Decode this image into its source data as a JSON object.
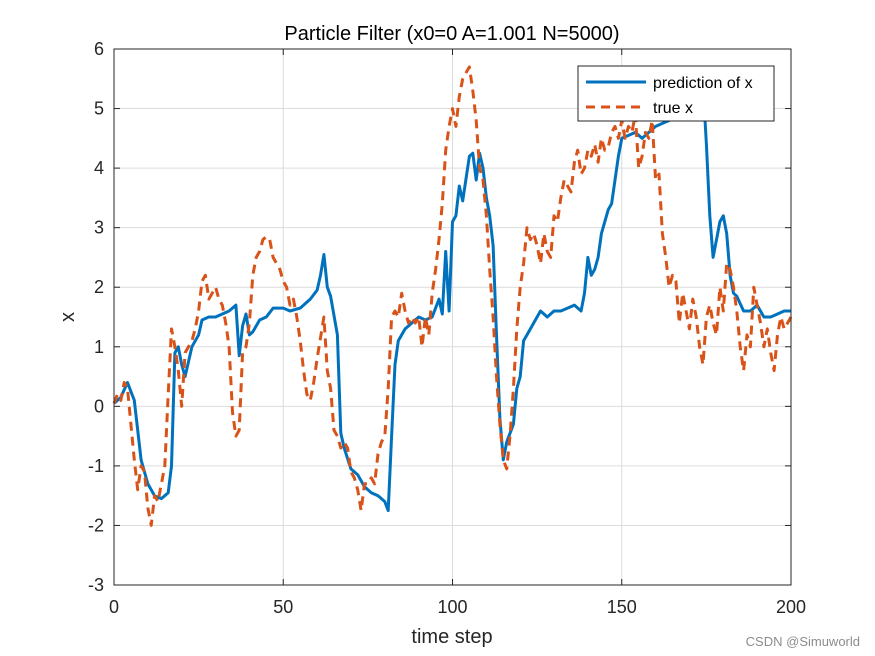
{
  "chart_data": {
    "type": "line",
    "title": "Particle Filter (x0=0 A=1.001 N=5000)",
    "xlabel": "time step",
    "ylabel": "x",
    "xlim": [
      0,
      200
    ],
    "ylim": [
      -3,
      6
    ],
    "xticks": [
      0,
      50,
      100,
      150,
      200
    ],
    "yticks": [
      -3,
      -2,
      -1,
      0,
      1,
      2,
      3,
      4,
      5,
      6
    ],
    "grid": true,
    "legend_position": "top-right",
    "series": [
      {
        "name": "prediction of x",
        "color": "#0072BD",
        "style": "solid",
        "points": [
          [
            0,
            0.05
          ],
          [
            2,
            0.15
          ],
          [
            4,
            0.4
          ],
          [
            6,
            0.1
          ],
          [
            8,
            -0.9
          ],
          [
            10,
            -1.3
          ],
          [
            12,
            -1.5
          ],
          [
            14,
            -1.55
          ],
          [
            16,
            -1.45
          ],
          [
            17,
            -1.0
          ],
          [
            18,
            0.9
          ],
          [
            19,
            1.0
          ],
          [
            20,
            0.7
          ],
          [
            21,
            0.5
          ],
          [
            22,
            0.75
          ],
          [
            23,
            1.0
          ],
          [
            25,
            1.2
          ],
          [
            26,
            1.45
          ],
          [
            28,
            1.5
          ],
          [
            30,
            1.5
          ],
          [
            32,
            1.55
          ],
          [
            34,
            1.6
          ],
          [
            36,
            1.7
          ],
          [
            37,
            0.85
          ],
          [
            38,
            1.35
          ],
          [
            39,
            1.55
          ],
          [
            40,
            1.2
          ],
          [
            41,
            1.25
          ],
          [
            43,
            1.45
          ],
          [
            45,
            1.5
          ],
          [
            47,
            1.65
          ],
          [
            50,
            1.65
          ],
          [
            52,
            1.6
          ],
          [
            55,
            1.65
          ],
          [
            58,
            1.8
          ],
          [
            60,
            1.95
          ],
          [
            61,
            2.2
          ],
          [
            62,
            2.55
          ],
          [
            63,
            2.0
          ],
          [
            64,
            1.85
          ],
          [
            66,
            1.2
          ],
          [
            67,
            -0.45
          ],
          [
            68,
            -0.7
          ],
          [
            70,
            -1.05
          ],
          [
            72,
            -1.15
          ],
          [
            74,
            -1.35
          ],
          [
            76,
            -1.45
          ],
          [
            78,
            -1.5
          ],
          [
            80,
            -1.6
          ],
          [
            81,
            -1.75
          ],
          [
            82,
            -0.5
          ],
          [
            83,
            0.7
          ],
          [
            84,
            1.1
          ],
          [
            86,
            1.3
          ],
          [
            88,
            1.4
          ],
          [
            90,
            1.5
          ],
          [
            92,
            1.45
          ],
          [
            94,
            1.5
          ],
          [
            96,
            1.8
          ],
          [
            97,
            1.55
          ],
          [
            98,
            2.6
          ],
          [
            99,
            1.6
          ],
          [
            100,
            3.1
          ],
          [
            101,
            3.2
          ],
          [
            102,
            3.7
          ],
          [
            103,
            3.45
          ],
          [
            105,
            4.2
          ],
          [
            106,
            4.25
          ],
          [
            107,
            3.8
          ],
          [
            108,
            4.25
          ],
          [
            109,
            4.0
          ],
          [
            110,
            3.5
          ],
          [
            111,
            3.2
          ],
          [
            112,
            2.7
          ],
          [
            113,
            1.2
          ],
          [
            114,
            -0.2
          ],
          [
            115,
            -0.9
          ],
          [
            116,
            -0.6
          ],
          [
            118,
            -0.3
          ],
          [
            119,
            0.3
          ],
          [
            120,
            0.5
          ],
          [
            121,
            1.1
          ],
          [
            122,
            1.2
          ],
          [
            124,
            1.4
          ],
          [
            126,
            1.6
          ],
          [
            128,
            1.5
          ],
          [
            130,
            1.6
          ],
          [
            132,
            1.6
          ],
          [
            134,
            1.65
          ],
          [
            136,
            1.7
          ],
          [
            138,
            1.6
          ],
          [
            139,
            1.9
          ],
          [
            140,
            2.5
          ],
          [
            141,
            2.2
          ],
          [
            142,
            2.3
          ],
          [
            143,
            2.5
          ],
          [
            144,
            2.9
          ],
          [
            146,
            3.3
          ],
          [
            147,
            3.4
          ],
          [
            148,
            3.8
          ],
          [
            149,
            4.2
          ],
          [
            150,
            4.5
          ],
          [
            152,
            4.55
          ],
          [
            154,
            4.6
          ],
          [
            156,
            4.5
          ],
          [
            158,
            4.6
          ],
          [
            160,
            4.7
          ],
          [
            162,
            4.75
          ],
          [
            164,
            4.8
          ],
          [
            166,
            4.95
          ],
          [
            168,
            5.05
          ],
          [
            170,
            5.2
          ],
          [
            172,
            5.3
          ],
          [
            174,
            5.4
          ],
          [
            175,
            4.4
          ],
          [
            176,
            3.2
          ],
          [
            177,
            2.5
          ],
          [
            178,
            2.8
          ],
          [
            179,
            3.1
          ],
          [
            180,
            3.2
          ],
          [
            181,
            2.9
          ],
          [
            182,
            2.2
          ],
          [
            183,
            1.9
          ],
          [
            184,
            1.85
          ],
          [
            186,
            1.6
          ],
          [
            188,
            1.6
          ],
          [
            190,
            1.7
          ],
          [
            192,
            1.5
          ],
          [
            194,
            1.5
          ],
          [
            196,
            1.55
          ],
          [
            198,
            1.6
          ],
          [
            200,
            1.6
          ]
        ]
      },
      {
        "name": "true x",
        "color": "#D95319",
        "style": "dashed",
        "points": [
          [
            0,
            0.05
          ],
          [
            1,
            0.2
          ],
          [
            2,
            0.1
          ],
          [
            3,
            0.4
          ],
          [
            4,
            0.3
          ],
          [
            5,
            -0.3
          ],
          [
            6,
            -0.9
          ],
          [
            7,
            -1.4
          ],
          [
            8,
            -1.0
          ],
          [
            9,
            -1.1
          ],
          [
            10,
            -1.7
          ],
          [
            11,
            -2.0
          ],
          [
            12,
            -1.5
          ],
          [
            13,
            -1.6
          ],
          [
            14,
            -1.3
          ],
          [
            15,
            -1.0
          ],
          [
            16,
            0.2
          ],
          [
            17,
            1.3
          ],
          [
            18,
            1.0
          ],
          [
            19,
            0.6
          ],
          [
            20,
            0.0
          ],
          [
            21,
            0.9
          ],
          [
            22,
            1.0
          ],
          [
            23,
            1.1
          ],
          [
            24,
            1.3
          ],
          [
            25,
            1.6
          ],
          [
            26,
            2.1
          ],
          [
            27,
            2.2
          ],
          [
            28,
            1.8
          ],
          [
            29,
            1.9
          ],
          [
            30,
            2.0
          ],
          [
            31,
            1.8
          ],
          [
            32,
            1.7
          ],
          [
            33,
            1.4
          ],
          [
            34,
            1.0
          ],
          [
            35,
            -0.1
          ],
          [
            36,
            -0.5
          ],
          [
            37,
            -0.4
          ],
          [
            38,
            0.9
          ],
          [
            39,
            1.0
          ],
          [
            40,
            1.4
          ],
          [
            41,
            2.2
          ],
          [
            42,
            2.5
          ],
          [
            43,
            2.6
          ],
          [
            44,
            2.8
          ],
          [
            45,
            2.85
          ],
          [
            46,
            2.8
          ],
          [
            47,
            2.5
          ],
          [
            48,
            2.4
          ],
          [
            49,
            2.3
          ],
          [
            50,
            2.1
          ],
          [
            51,
            2.0
          ],
          [
            52,
            1.7
          ],
          [
            53,
            1.8
          ],
          [
            54,
            1.5
          ],
          [
            55,
            1.1
          ],
          [
            56,
            0.6
          ],
          [
            57,
            0.2
          ],
          [
            58,
            0.1
          ],
          [
            59,
            0.4
          ],
          [
            60,
            0.8
          ],
          [
            62,
            1.5
          ],
          [
            63,
            0.6
          ],
          [
            64,
            0.3
          ],
          [
            65,
            -0.4
          ],
          [
            66,
            -0.5
          ],
          [
            67,
            -0.7
          ],
          [
            68,
            -0.6
          ],
          [
            69,
            -0.7
          ],
          [
            70,
            -1.1
          ],
          [
            71,
            -1.2
          ],
          [
            72,
            -1.4
          ],
          [
            73,
            -1.75
          ],
          [
            74,
            -1.3
          ],
          [
            75,
            -1.3
          ],
          [
            76,
            -1.2
          ],
          [
            77,
            -1.3
          ],
          [
            78,
            -0.8
          ],
          [
            79,
            -0.6
          ],
          [
            80,
            -0.5
          ],
          [
            81,
            0.3
          ],
          [
            82,
            1.5
          ],
          [
            83,
            1.6
          ],
          [
            84,
            1.5
          ],
          [
            85,
            1.9
          ],
          [
            86,
            1.6
          ],
          [
            87,
            1.4
          ],
          [
            88,
            1.5
          ],
          [
            89,
            1.4
          ],
          [
            90,
            1.5
          ],
          [
            91,
            1.0
          ],
          [
            92,
            1.5
          ],
          [
            93,
            1.2
          ],
          [
            94,
            1.9
          ],
          [
            95,
            2.3
          ],
          [
            96,
            2.8
          ],
          [
            97,
            3.4
          ],
          [
            98,
            4.3
          ],
          [
            99,
            4.7
          ],
          [
            100,
            5.0
          ],
          [
            101,
            4.7
          ],
          [
            102,
            5.2
          ],
          [
            103,
            5.5
          ],
          [
            104,
            5.6
          ],
          [
            105,
            5.7
          ],
          [
            106,
            5.3
          ],
          [
            107,
            4.8
          ],
          [
            108,
            4.0
          ],
          [
            109,
            3.8
          ],
          [
            110,
            3.2
          ],
          [
            111,
            2.3
          ],
          [
            112,
            1.5
          ],
          [
            113,
            0.5
          ],
          [
            114,
            -0.3
          ],
          [
            115,
            -0.9
          ],
          [
            116,
            -1.05
          ],
          [
            117,
            -0.5
          ],
          [
            118,
            0.3
          ],
          [
            119,
            1.3
          ],
          [
            120,
            2.0
          ],
          [
            121,
            2.4
          ],
          [
            122,
            3.0
          ],
          [
            123,
            2.8
          ],
          [
            124,
            2.9
          ],
          [
            125,
            2.7
          ],
          [
            126,
            2.4
          ],
          [
            127,
            2.9
          ],
          [
            128,
            2.6
          ],
          [
            129,
            2.5
          ],
          [
            130,
            3.2
          ],
          [
            131,
            3.1
          ],
          [
            132,
            3.5
          ],
          [
            133,
            3.8
          ],
          [
            134,
            3.7
          ],
          [
            135,
            3.6
          ],
          [
            136,
            4.1
          ],
          [
            137,
            4.3
          ],
          [
            138,
            3.9
          ],
          [
            139,
            4.0
          ],
          [
            140,
            4.3
          ],
          [
            141,
            4.2
          ],
          [
            142,
            4.4
          ],
          [
            143,
            4.1
          ],
          [
            144,
            4.5
          ],
          [
            145,
            4.3
          ],
          [
            146,
            4.35
          ],
          [
            147,
            4.6
          ],
          [
            148,
            4.7
          ],
          [
            149,
            4.5
          ],
          [
            150,
            4.8
          ],
          [
            151,
            4.5
          ],
          [
            152,
            4.7
          ],
          [
            153,
            4.6
          ],
          [
            154,
            4.9
          ],
          [
            155,
            4.0
          ],
          [
            156,
            4.2
          ],
          [
            157,
            4.6
          ],
          [
            158,
            4.5
          ],
          [
            159,
            4.8
          ],
          [
            160,
            3.8
          ],
          [
            161,
            3.9
          ],
          [
            162,
            2.9
          ],
          [
            163,
            2.5
          ],
          [
            164,
            2.0
          ],
          [
            165,
            2.2
          ],
          [
            166,
            2.1
          ],
          [
            167,
            1.4
          ],
          [
            168,
            1.9
          ],
          [
            169,
            1.6
          ],
          [
            170,
            1.3
          ],
          [
            171,
            1.8
          ],
          [
            172,
            1.5
          ],
          [
            173,
            1.0
          ],
          [
            174,
            0.7
          ],
          [
            175,
            1.5
          ],
          [
            176,
            1.7
          ],
          [
            177,
            1.4
          ],
          [
            178,
            1.2
          ],
          [
            179,
            2.0
          ],
          [
            180,
            1.6
          ],
          [
            181,
            2.4
          ],
          [
            182,
            2.3
          ],
          [
            183,
            2.0
          ],
          [
            184,
            1.6
          ],
          [
            185,
            1.0
          ],
          [
            186,
            0.6
          ],
          [
            187,
            1.2
          ],
          [
            188,
            1.0
          ],
          [
            189,
            2.0
          ],
          [
            190,
            1.7
          ],
          [
            191,
            1.4
          ],
          [
            192,
            1.0
          ],
          [
            193,
            1.3
          ],
          [
            194,
            0.9
          ],
          [
            195,
            0.6
          ],
          [
            196,
            1.2
          ],
          [
            197,
            1.5
          ],
          [
            198,
            1.3
          ],
          [
            199,
            1.4
          ],
          [
            200,
            1.5
          ]
        ]
      }
    ]
  },
  "watermark": "CSDN @Simuworld"
}
